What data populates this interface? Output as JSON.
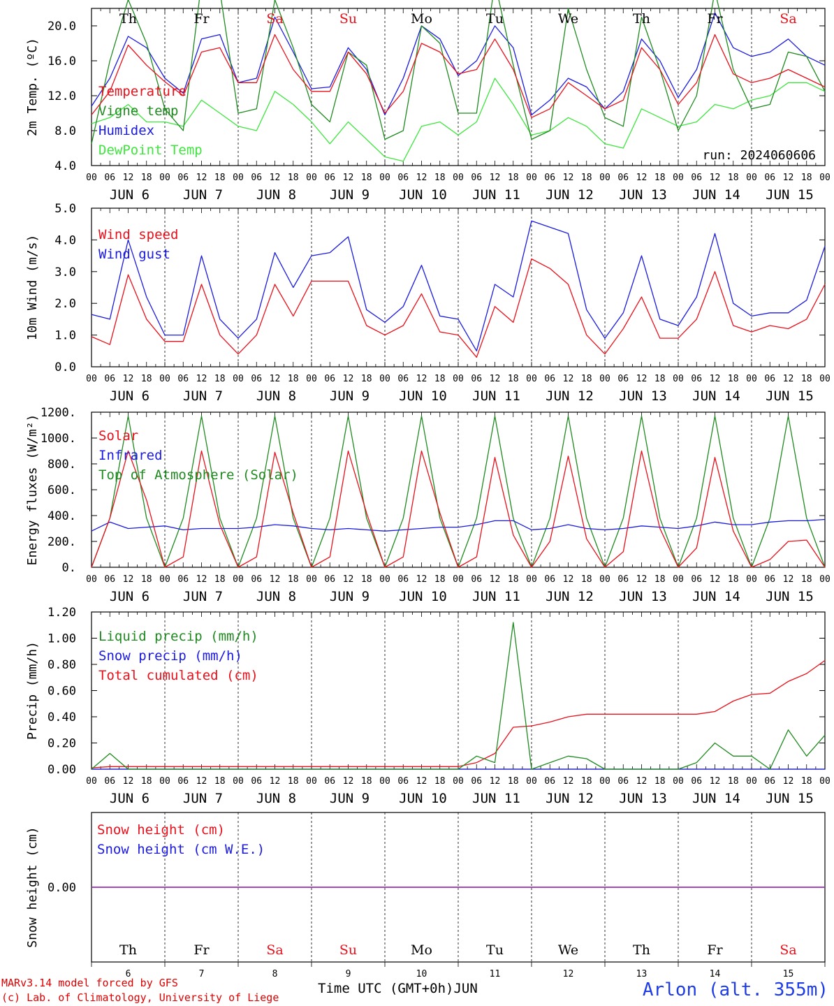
{
  "colors": {
    "red": "#e8101a",
    "blue": "#1a1ae0",
    "green": "#1f8a1f",
    "lightgreen": "#3ee63e",
    "purple": "#9c2fb0"
  },
  "footer": {
    "credit1": "MARv3.14 model forced by GFS",
    "credit2": "(c) Lab. of Climatology, University of Liege",
    "axis_title": "Time UTC (GMT+0h)",
    "month": "JUN",
    "station": "Arlon (alt. 355m)"
  },
  "days": {
    "weekday_labels": [
      "Th",
      "Fr",
      "Sa",
      "Su",
      "Mo",
      "Tu",
      "We",
      "Th",
      "Fr",
      "Sa"
    ],
    "weekend_flags": [
      false,
      false,
      true,
      true,
      false,
      false,
      false,
      false,
      false,
      true
    ],
    "day_numbers": [
      "6",
      "7",
      "8",
      "9",
      "10",
      "11",
      "12",
      "13",
      "14",
      "15"
    ],
    "date_labels": [
      "JUN  6",
      "JUN  7",
      "JUN  8",
      "JUN  9",
      "JUN 10",
      "JUN 11",
      "JUN 12",
      "JUN 13",
      "JUN 14",
      "JUN 15"
    ],
    "hour_labels": [
      "00",
      "06",
      "12",
      "18"
    ],
    "end_hour_label": "00"
  },
  "chart_data": [
    {
      "type": "line",
      "ylabel": "2m Temp. (ºC)",
      "ylim": [
        4,
        22
      ],
      "yticks": [
        4,
        8,
        12,
        16,
        20
      ],
      "ytick_labels": [
        "4.0",
        "8.0",
        "12.0",
        "16.0",
        "20.0"
      ],
      "annotation": "run: 2024060606",
      "x_hours": [
        0,
        6,
        12,
        18,
        24,
        30,
        36,
        42,
        48,
        54,
        60,
        66,
        72,
        78,
        84,
        90,
        96,
        102,
        108,
        114,
        120,
        126,
        132,
        138,
        144,
        150,
        156,
        162,
        168,
        174,
        180,
        186,
        192,
        198,
        204,
        210,
        216,
        222,
        228,
        234,
        240
      ],
      "series": [
        {
          "name": "Temperature",
          "color": "red",
          "values": [
            9.8,
            12.5,
            17.8,
            15.5,
            13.6,
            12.0,
            17.0,
            17.5,
            13.5,
            13.5,
            19.0,
            15.0,
            12.5,
            12.5,
            17.0,
            14.5,
            10.0,
            12.5,
            18.0,
            17.0,
            14.5,
            15.0,
            18.5,
            15.0,
            9.5,
            10.5,
            13.5,
            12.0,
            10.5,
            11.5,
            17.5,
            15.0,
            11.0,
            13.5,
            19.0,
            14.5,
            13.5,
            14.0,
            15.0,
            14.0,
            13.0
          ]
        },
        {
          "name": "Vigne temp",
          "color": "green",
          "values": [
            6.5,
            16.0,
            23.0,
            18.0,
            10.5,
            8.0,
            25.0,
            24.0,
            10.0,
            10.5,
            23.0,
            17.5,
            11.0,
            9.0,
            17.0,
            15.5,
            7.0,
            8.0,
            20.0,
            18.0,
            10.0,
            10.0,
            25.0,
            15.5,
            7.0,
            8.0,
            22.0,
            15.0,
            9.5,
            8.5,
            21.0,
            15.0,
            8.0,
            12.0,
            24.0,
            15.0,
            10.5,
            11.0,
            17.0,
            16.5,
            12.5
          ]
        },
        {
          "name": "Humidex",
          "color": "blue",
          "values": [
            10.8,
            14.0,
            18.8,
            17.5,
            14.0,
            12.3,
            18.5,
            19.0,
            13.5,
            14.0,
            21.0,
            17.0,
            12.8,
            13.0,
            17.5,
            15.0,
            9.8,
            14.0,
            20.0,
            18.5,
            14.3,
            16.0,
            20.0,
            17.5,
            9.8,
            11.5,
            14.0,
            13.0,
            10.5,
            12.5,
            18.5,
            16.0,
            11.8,
            15.0,
            21.5,
            17.5,
            16.5,
            17.0,
            18.5,
            16.5,
            15.5
          ]
        },
        {
          "name": "DewPoint Temp",
          "color": "lightgreen",
          "values": [
            8.8,
            9.5,
            11.0,
            9.0,
            9.0,
            8.5,
            11.5,
            10.0,
            8.5,
            8.0,
            12.5,
            11.0,
            9.0,
            6.5,
            9.0,
            7.0,
            5.0,
            4.5,
            8.5,
            9.0,
            7.5,
            9.0,
            14.0,
            11.0,
            7.5,
            8.0,
            9.5,
            8.5,
            6.5,
            6.0,
            10.5,
            9.5,
            8.5,
            9.0,
            11.0,
            10.5,
            11.5,
            12.0,
            13.5,
            13.5,
            12.5
          ]
        }
      ]
    },
    {
      "type": "line",
      "ylabel": "10m Wind (m/s)",
      "ylim": [
        0,
        5
      ],
      "yticks": [
        0,
        1,
        2,
        3,
        4,
        5
      ],
      "ytick_labels": [
        "0.0",
        "1.0",
        "2.0",
        "3.0",
        "4.0",
        "5.0"
      ],
      "x_hours": [
        0,
        6,
        12,
        18,
        24,
        30,
        36,
        42,
        48,
        54,
        60,
        66,
        72,
        78,
        84,
        90,
        96,
        102,
        108,
        114,
        120,
        126,
        132,
        138,
        144,
        150,
        156,
        162,
        168,
        174,
        180,
        186,
        192,
        198,
        204,
        210,
        216,
        222,
        228,
        234,
        240
      ],
      "series": [
        {
          "name": "Wind speed",
          "color": "red",
          "values": [
            0.95,
            0.7,
            2.9,
            1.5,
            0.8,
            0.8,
            2.6,
            1.0,
            0.4,
            1.0,
            2.6,
            1.6,
            2.7,
            2.7,
            2.7,
            1.3,
            1.0,
            1.3,
            2.3,
            1.1,
            1.0,
            0.3,
            1.9,
            1.4,
            3.4,
            3.1,
            2.6,
            1.0,
            0.4,
            1.2,
            2.2,
            0.9,
            0.9,
            1.5,
            3.0,
            1.3,
            1.1,
            1.3,
            1.2,
            1.5,
            2.6
          ]
        },
        {
          "name": "Wind gust",
          "color": "blue",
          "values": [
            1.65,
            1.5,
            4.0,
            2.2,
            1.0,
            1.0,
            3.5,
            1.5,
            0.9,
            1.5,
            3.6,
            2.5,
            3.5,
            3.6,
            4.1,
            1.8,
            1.4,
            1.9,
            3.2,
            1.6,
            1.5,
            0.5,
            2.6,
            2.2,
            4.6,
            4.4,
            4.2,
            1.8,
            0.9,
            1.7,
            3.5,
            1.5,
            1.3,
            2.2,
            4.2,
            2.0,
            1.6,
            1.7,
            1.7,
            2.1,
            3.8
          ]
        }
      ]
    },
    {
      "type": "line",
      "ylabel": "Energy fluxes (W/m²)",
      "ylim": [
        0,
        1200
      ],
      "yticks": [
        0,
        200,
        400,
        600,
        800,
        1000,
        1200
      ],
      "ytick_labels": [
        "0.",
        "200.",
        "400.",
        "600.",
        "800.",
        "1000.",
        "1200."
      ],
      "x_hours": [
        0,
        6,
        12,
        18,
        24,
        30,
        36,
        42,
        48,
        54,
        60,
        66,
        72,
        78,
        84,
        90,
        96,
        102,
        108,
        114,
        120,
        126,
        132,
        138,
        144,
        150,
        156,
        162,
        168,
        174,
        180,
        186,
        192,
        198,
        204,
        210,
        216,
        222,
        228,
        234,
        240
      ],
      "series": [
        {
          "name": "Solar",
          "color": "red",
          "values": [
            0,
            380,
            900,
            520,
            0,
            80,
            900,
            330,
            0,
            80,
            890,
            420,
            0,
            80,
            900,
            420,
            0,
            80,
            900,
            420,
            0,
            80,
            850,
            250,
            0,
            200,
            860,
            220,
            0,
            120,
            900,
            300,
            0,
            150,
            850,
            280,
            0,
            60,
            200,
            210,
            0
          ]
        },
        {
          "name": "Infrared",
          "color": "blue",
          "values": [
            280,
            350,
            300,
            310,
            320,
            290,
            300,
            300,
            300,
            310,
            330,
            320,
            300,
            290,
            300,
            290,
            280,
            290,
            300,
            310,
            310,
            330,
            360,
            360,
            290,
            300,
            330,
            300,
            290,
            300,
            320,
            310,
            300,
            320,
            350,
            330,
            330,
            350,
            360,
            360,
            370
          ]
        },
        {
          "name": "Top of Atmosphere (Solar)",
          "color": "green",
          "values": [
            0,
            380,
            1170,
            380,
            0,
            380,
            1170,
            380,
            0,
            380,
            1170,
            380,
            0,
            380,
            1170,
            380,
            0,
            380,
            1170,
            380,
            0,
            380,
            1170,
            380,
            0,
            380,
            1170,
            380,
            0,
            380,
            1170,
            380,
            0,
            380,
            1170,
            380,
            0,
            380,
            1170,
            380,
            0
          ]
        }
      ]
    },
    {
      "type": "line",
      "ylabel": "Precip (mm/h)",
      "ylim": [
        0,
        1.2
      ],
      "yticks": [
        0,
        0.2,
        0.4,
        0.6,
        0.8,
        1.0,
        1.2
      ],
      "ytick_labels": [
        "0.00",
        "0.20",
        "0.40",
        "0.60",
        "0.80",
        "1.00",
        "1.20"
      ],
      "x_hours": [
        0,
        6,
        12,
        18,
        24,
        30,
        36,
        42,
        48,
        54,
        60,
        66,
        72,
        78,
        84,
        90,
        96,
        102,
        108,
        114,
        120,
        126,
        132,
        138,
        144,
        150,
        156,
        162,
        168,
        174,
        180,
        186,
        192,
        198,
        204,
        210,
        216,
        222,
        228,
        234,
        240
      ],
      "series": [
        {
          "name": "Liquid precip (mm/h)",
          "color": "green",
          "values": [
            0,
            0.12,
            0,
            0,
            0,
            0,
            0,
            0,
            0,
            0,
            0,
            0,
            0,
            0,
            0,
            0,
            0,
            0,
            0,
            0,
            0,
            0.1,
            0.05,
            1.12,
            0,
            0.05,
            0.1,
            0.08,
            0,
            0,
            0,
            0,
            0,
            0.05,
            0.2,
            0.1,
            0.1,
            0,
            0.3,
            0.1,
            0.26
          ]
        },
        {
          "name": "Snow precip (mm/h)",
          "color": "blue",
          "values": [
            0,
            0,
            0,
            0,
            0,
            0,
            0,
            0,
            0,
            0,
            0,
            0,
            0,
            0,
            0,
            0,
            0,
            0,
            0,
            0,
            0,
            0,
            0,
            0,
            0,
            0,
            0,
            0,
            0,
            0,
            0,
            0,
            0,
            0,
            0,
            0,
            0,
            0,
            0,
            0,
            0
          ]
        },
        {
          "name": "Total cumulated (cm)",
          "color": "red",
          "values": [
            0.01,
            0.02,
            0.02,
            0.02,
            0.02,
            0.02,
            0.02,
            0.02,
            0.02,
            0.02,
            0.02,
            0.02,
            0.02,
            0.02,
            0.02,
            0.02,
            0.02,
            0.02,
            0.02,
            0.02,
            0.02,
            0.05,
            0.12,
            0.32,
            0.33,
            0.36,
            0.4,
            0.42,
            0.42,
            0.42,
            0.42,
            0.42,
            0.42,
            0.42,
            0.44,
            0.52,
            0.57,
            0.58,
            0.67,
            0.73,
            0.83
          ]
        }
      ]
    },
    {
      "type": "line",
      "ylabel": "Snow height (cm)",
      "ylim": [
        -1,
        1
      ],
      "yticks": [
        0
      ],
      "ytick_labels": [
        "0.00"
      ],
      "x_hours": [
        0,
        240
      ],
      "series": [
        {
          "name": "Snow height (cm)",
          "color": "red",
          "values": [
            0,
            0
          ]
        },
        {
          "name": "Snow height (cm W.E.)",
          "color": "blue",
          "values": [
            0,
            0
          ]
        }
      ]
    }
  ]
}
